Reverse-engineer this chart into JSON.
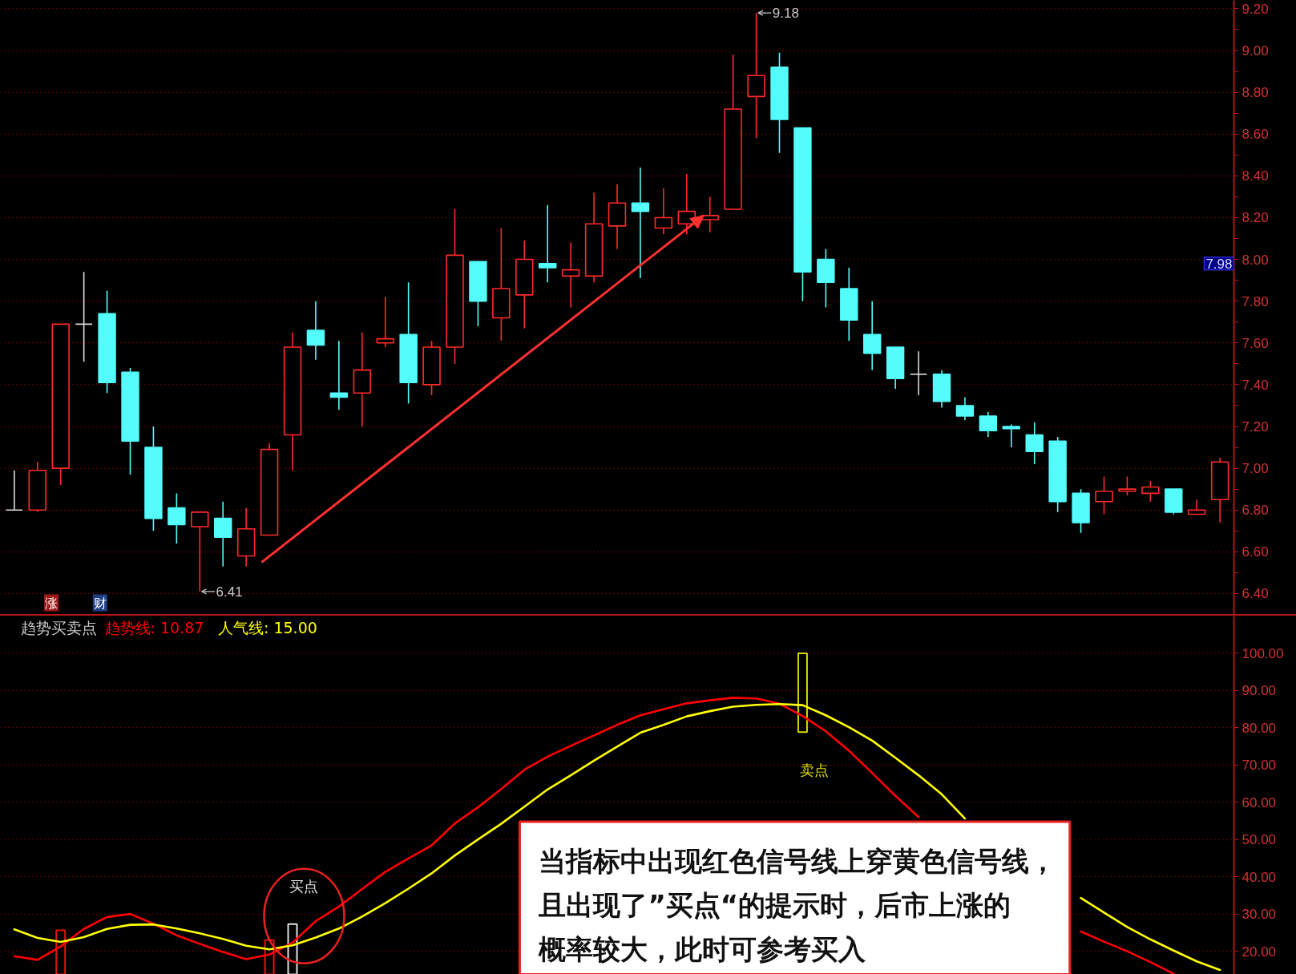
{
  "chart_data": [
    {
      "type": "candlestick",
      "categories": [
        null,
        null,
        null,
        null,
        null,
        null,
        null,
        null,
        null,
        null,
        null,
        null,
        null,
        null,
        null,
        null,
        null,
        null,
        null,
        null,
        null,
        null,
        null,
        null,
        null,
        null,
        null,
        null,
        null,
        null,
        null,
        null,
        null,
        null,
        null,
        null,
        null,
        null,
        null,
        null,
        null,
        null,
        null,
        null,
        null,
        null,
        null,
        null,
        null,
        null,
        null,
        null,
        null
      ],
      "ohlc": [
        [
          6.8,
          6.99,
          6.8,
          6.8
        ],
        [
          6.8,
          7.03,
          6.79,
          6.99
        ],
        [
          7.0,
          7.69,
          6.92,
          7.69
        ],
        [
          7.69,
          7.94,
          7.51,
          7.69
        ],
        [
          7.74,
          7.85,
          7.36,
          7.41
        ],
        [
          7.46,
          7.48,
          6.97,
          7.13
        ],
        [
          7.1,
          7.2,
          6.7,
          6.76
        ],
        [
          6.81,
          6.88,
          6.64,
          6.73
        ],
        [
          6.72,
          6.79,
          6.41,
          6.79
        ],
        [
          6.76,
          6.84,
          6.53,
          6.67
        ],
        [
          6.58,
          6.81,
          6.53,
          6.71
        ],
        [
          6.68,
          7.12,
          6.68,
          7.09
        ],
        [
          7.16,
          7.65,
          6.99,
          7.58
        ],
        [
          7.66,
          7.8,
          7.52,
          7.59
        ],
        [
          7.36,
          7.61,
          7.28,
          7.34
        ],
        [
          7.36,
          7.65,
          7.2,
          7.47
        ],
        [
          7.6,
          7.82,
          7.58,
          7.62
        ],
        [
          7.64,
          7.89,
          7.31,
          7.41
        ],
        [
          7.4,
          7.61,
          7.35,
          7.58
        ],
        [
          7.58,
          8.24,
          7.5,
          8.02
        ],
        [
          7.99,
          7.99,
          7.68,
          7.8
        ],
        [
          7.72,
          8.15,
          7.61,
          7.86
        ],
        [
          7.83,
          8.09,
          7.67,
          8.0
        ],
        [
          7.98,
          8.26,
          7.89,
          7.96
        ],
        [
          7.92,
          8.08,
          7.77,
          7.95
        ],
        [
          7.92,
          8.32,
          7.89,
          8.17
        ],
        [
          8.16,
          8.36,
          8.05,
          8.27
        ],
        [
          8.27,
          8.44,
          7.91,
          8.23
        ],
        [
          8.15,
          8.34,
          8.12,
          8.2
        ],
        [
          8.17,
          8.41,
          8.12,
          8.23
        ],
        [
          8.19,
          8.3,
          8.13,
          8.21
        ],
        [
          8.24,
          8.98,
          8.24,
          8.72
        ],
        [
          8.78,
          9.18,
          8.58,
          8.88
        ],
        [
          8.92,
          8.99,
          8.51,
          8.67
        ],
        [
          8.63,
          8.63,
          7.8,
          7.94
        ],
        [
          8.0,
          8.05,
          7.77,
          7.89
        ],
        [
          7.86,
          7.96,
          7.61,
          7.71
        ],
        [
          7.64,
          7.8,
          7.47,
          7.55
        ],
        [
          7.58,
          7.58,
          7.38,
          7.43
        ],
        [
          7.45,
          7.56,
          7.35,
          7.45
        ],
        [
          7.45,
          7.47,
          7.29,
          7.32
        ],
        [
          7.3,
          7.34,
          7.23,
          7.25
        ],
        [
          7.25,
          7.27,
          7.15,
          7.18
        ],
        [
          7.2,
          7.21,
          7.1,
          7.19
        ],
        [
          7.16,
          7.22,
          7.02,
          7.08
        ],
        [
          7.13,
          7.15,
          6.79,
          6.84
        ],
        [
          6.88,
          6.9,
          6.69,
          6.74
        ],
        [
          6.84,
          6.96,
          6.78,
          6.89
        ],
        [
          6.89,
          6.96,
          6.87,
          6.9
        ],
        [
          6.88,
          6.94,
          6.84,
          6.91
        ],
        [
          6.9,
          6.9,
          6.78,
          6.79
        ],
        [
          6.78,
          6.85,
          6.78,
          6.8
        ],
        [
          6.85,
          7.05,
          6.74,
          7.03
        ]
      ],
      "colors": [
        "#dcdcdc",
        "#ff2a2a",
        "#ff2a2a",
        "#dcdcdc",
        "#54fcfc",
        "#54fcfc",
        "#54fcfc",
        "#54fcfc",
        "#ff2a2a",
        "#54fcfc",
        "#ff2a2a",
        "#ff2a2a",
        "#ff2a2a",
        "#54fcfc",
        "#54fcfc",
        "#ff2a2a",
        "#ff2a2a",
        "#54fcfc",
        "#ff2a2a",
        "#ff2a2a",
        "#54fcfc",
        "#ff2a2a",
        "#ff2a2a",
        "#54fcfc",
        "#ff2a2a",
        "#ff2a2a",
        "#ff2a2a",
        "#54fcfc",
        "#ff2a2a",
        "#ff2a2a",
        "#ff2a2a",
        "#ff2a2a",
        "#ff2a2a",
        "#54fcfc",
        "#54fcfc",
        "#54fcfc",
        "#54fcfc",
        "#54fcfc",
        "#54fcfc",
        "#dcdcdc",
        "#54fcfc",
        "#54fcfc",
        "#54fcfc",
        "#54fcfc",
        "#54fcfc",
        "#54fcfc",
        "#54fcfc",
        "#ff2a2a",
        "#ff2a2a",
        "#ff2a2a",
        "#54fcfc",
        "#ff2a2a",
        "#ff2a2a"
      ],
      "ylim": [
        6.3,
        9.24
      ],
      "yticks": [
        {
          "value": 6.4,
          "label": "6.40"
        },
        {
          "value": 6.5,
          "label": null
        },
        {
          "value": 6.6,
          "label": "6.60"
        },
        {
          "value": 6.7,
          "label": null
        },
        {
          "value": 6.8,
          "label": "6.80"
        },
        {
          "value": 6.9,
          "label": null
        },
        {
          "value": 7.0,
          "label": "7.00"
        },
        {
          "value": 7.1,
          "label": null
        },
        {
          "value": 7.2,
          "label": "7.20"
        },
        {
          "value": 7.3,
          "label": null
        },
        {
          "value": 7.4,
          "label": "7.40"
        },
        {
          "value": 7.5,
          "label": null
        },
        {
          "value": 7.6,
          "label": "7.60"
        },
        {
          "value": 7.7,
          "label": null
        },
        {
          "value": 7.8,
          "label": "7.80"
        },
        {
          "value": 7.9,
          "label": null
        },
        {
          "value": 8.0,
          "label": "8.00"
        },
        {
          "value": 8.1,
          "label": null
        },
        {
          "value": 8.2,
          "label": "8.20"
        },
        {
          "value": 8.3,
          "label": null
        },
        {
          "value": 8.4,
          "label": "8.40"
        },
        {
          "value": 8.5,
          "label": null
        },
        {
          "value": 8.6,
          "label": "8.60"
        },
        {
          "value": 8.7,
          "label": null
        },
        {
          "value": 8.8,
          "label": "8.80"
        },
        {
          "value": 8.9,
          "label": null
        },
        {
          "value": 9.0,
          "label": "9.00"
        },
        {
          "value": 9.1,
          "label": null
        },
        {
          "value": 9.2,
          "label": "9.20"
        }
      ],
      "grid": "y",
      "tick_labels": "y",
      "annotations": [
        "9.18",
        "6.41",
        {
          "text": "7.98",
          "y": 7.98
        },
        "涨",
        "财"
      ]
    },
    {
      "type": "line",
      "title": "趋势买卖点",
      "categories": [
        null,
        null,
        null,
        null,
        null,
        null,
        null,
        null,
        null,
        null,
        null,
        null,
        null,
        null,
        null,
        null,
        null,
        null,
        null,
        null,
        null,
        null,
        null,
        null,
        null,
        null,
        null,
        null,
        null,
        null,
        null,
        null,
        null,
        null,
        null,
        null,
        null,
        null,
        null,
        null,
        null,
        null,
        null,
        null,
        null,
        null,
        null,
        null,
        null,
        null,
        null,
        null,
        null
      ],
      "series": [
        {
          "type": "bar",
          "values": [
            null,
            null,
            11.8,
            null,
            null,
            null,
            null,
            null,
            null,
            null,
            null,
            9.2,
            13.5,
            null,
            null,
            null,
            null,
            null,
            null,
            null,
            null,
            null,
            null,
            null,
            null,
            null,
            null,
            null,
            null,
            null,
            null,
            null,
            null,
            null,
            21.1,
            null,
            null,
            null,
            null,
            null,
            null,
            null,
            null,
            null,
            null,
            null,
            null,
            null,
            null,
            null,
            null,
            null,
            null
          ],
          "base": [
            null,
            null,
            13.8,
            null,
            null,
            null,
            null,
            null,
            null,
            null,
            null,
            13.8,
            13.8,
            null,
            null,
            null,
            null,
            null,
            null,
            null,
            null,
            null,
            null,
            null,
            null,
            null,
            null,
            null,
            null,
            null,
            null,
            null,
            null,
            null,
            78.8,
            null,
            null,
            null,
            null,
            null,
            null,
            null,
            null,
            null,
            null,
            null,
            null,
            null,
            null,
            null,
            null,
            null,
            null
          ],
          "colors": [
            null,
            null,
            "#e81010",
            null,
            null,
            null,
            null,
            null,
            null,
            null,
            null,
            "#e81010",
            "#e0e0e0",
            null,
            null,
            null,
            null,
            null,
            null,
            null,
            null,
            null,
            null,
            null,
            null,
            null,
            null,
            null,
            null,
            null,
            null,
            null,
            null,
            null,
            "#d8d800",
            null,
            null,
            null,
            null,
            null,
            null,
            null,
            null,
            null,
            null,
            null,
            null,
            null,
            null,
            null,
            null,
            null,
            null
          ]
        },
        {
          "name": "趋势线: 10.87",
          "color": "#ff0000",
          "values": [
            18.7,
            17.7,
            21.3,
            26.0,
            29.2,
            30.0,
            27.4,
            24.3,
            22.0,
            19.8,
            17.9,
            19.1,
            22.3,
            28.1,
            32.0,
            36.7,
            41.3,
            44.9,
            48.4,
            54.3,
            58.6,
            63.5,
            68.7,
            72.2,
            75.1,
            77.9,
            80.7,
            83.3,
            84.9,
            86.5,
            87.3,
            88.0,
            87.8,
            86.4,
            83.1,
            79.0,
            73.8,
            67.8,
            61.7,
            56.0,
            null,
            null,
            null,
            null,
            null,
            null,
            25.3,
            22.6,
            20.0,
            17.1,
            14.0,
            null,
            null
          ]
        },
        {
          "name": "人气线: 15.00",
          "color": "#ffff00",
          "values": [
            25.9,
            23.6,
            22.5,
            23.8,
            26.0,
            27.1,
            27.2,
            26.1,
            24.8,
            23.3,
            21.5,
            20.5,
            21.6,
            23.7,
            26.1,
            29.3,
            32.9,
            36.8,
            40.9,
            45.7,
            50.0,
            54.2,
            58.8,
            63.4,
            67.2,
            71.1,
            74.9,
            78.6,
            80.7,
            83.0,
            84.4,
            85.6,
            86.1,
            86.3,
            86.0,
            83.3,
            80.1,
            76.5,
            71.9,
            67.2,
            62.1,
            55.6,
            null,
            null,
            null,
            null,
            34.3,
            30.4,
            26.5,
            23.2,
            20.2,
            17.3,
            15.0
          ]
        }
      ],
      "ylim": [
        13.8,
        109.9
      ],
      "yticks": [
        {
          "value": 20,
          "label": "20.00"
        },
        {
          "value": 30,
          "label": "30.00"
        },
        {
          "value": 40,
          "label": "40.00"
        },
        {
          "value": 50,
          "label": "50.00"
        },
        {
          "value": 60,
          "label": "60.00"
        },
        {
          "value": 70,
          "label": "70.00"
        },
        {
          "value": 80,
          "label": "80.00"
        },
        {
          "value": 90,
          "label": "90.00"
        },
        {
          "value": 100,
          "label": "100.00"
        }
      ],
      "grid": "y",
      "tick_labels": "y",
      "legend": "top left",
      "annotations": [
        "买点",
        "卖点",
        "当指标中出现红色信号线上穿黄色信号线，且出现了”买点“的提示时，后市上涨的概率较大，此时可参考买入"
      ]
    }
  ]
}
